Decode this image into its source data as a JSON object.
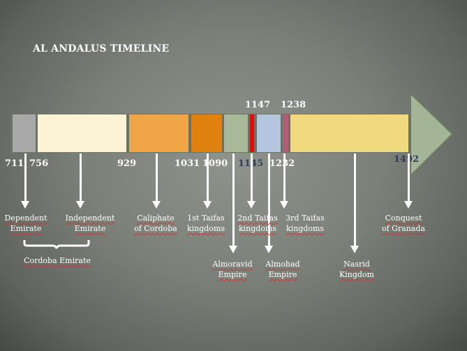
{
  "title": "AL ANDALUS TIMELINE",
  "years_below": [
    "711",
    "756",
    "929",
    "1031",
    "1090",
    "1145",
    "1232",
    "1492"
  ],
  "years_above": [
    "1147",
    "1238"
  ],
  "colors": {
    "band": "#687464",
    "segments": [
      "#a9a9a9",
      "#fcf3d6",
      "#f0a646",
      "#e0820f",
      "#a9b898",
      "#ea0a0a",
      "#b4c6dd",
      "#b35d76",
      "#f0d97e"
    ],
    "arrowhead": "#a4b496",
    "year_dark": "#2f3f5c"
  },
  "labels": {
    "dependent": [
      "Dependent",
      "Emirate"
    ],
    "independent": [
      "Independent",
      "Emirate"
    ],
    "caliphate": [
      "Caliphate",
      "of Cordoba"
    ],
    "taifas1": [
      "1st Taifas",
      "kingdoms"
    ],
    "taifas2": [
      "2nd Taifas",
      "kingdoms"
    ],
    "taifas3": [
      "3rd Taifas",
      "kingdoms"
    ],
    "granada": [
      "Conquest",
      "of Granada"
    ],
    "almoravid": [
      "Almoravid",
      "Empire"
    ],
    "almohad": [
      "Almohad",
      "Empire"
    ],
    "nasrid": [
      "Nasrid",
      "Kingdom"
    ],
    "cordoba_emirate": "Cordoba Emirate"
  }
}
